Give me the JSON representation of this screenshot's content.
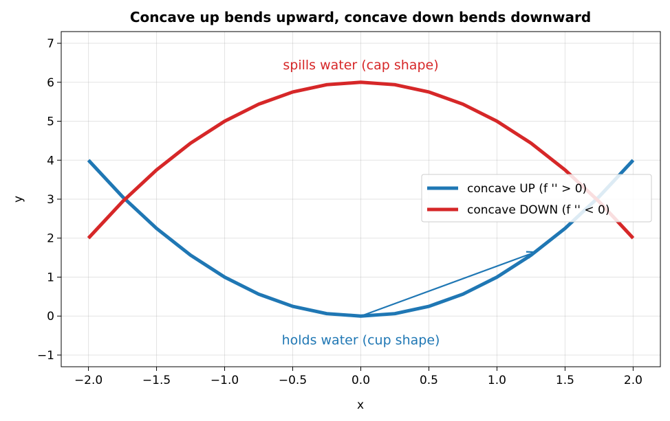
{
  "chart_data": {
    "type": "line",
    "title": "Concave up bends upward, concave down bends downward",
    "xlabel": "x",
    "ylabel": "y",
    "xlim": [
      -2.2,
      2.2
    ],
    "ylim": [
      -1.3,
      7.3
    ],
    "x_ticks": [
      -2.0,
      -1.5,
      -1.0,
      -0.5,
      0.0,
      0.5,
      1.0,
      1.5,
      2.0
    ],
    "x_tick_labels": [
      "−2.0",
      "−1.5",
      "−1.0",
      "−0.5",
      "0.0",
      "0.5",
      "1.0",
      "1.5",
      "2.0"
    ],
    "y_ticks": [
      -1,
      0,
      1,
      2,
      3,
      4,
      5,
      6,
      7
    ],
    "y_tick_labels": [
      "−1",
      "0",
      "1",
      "2",
      "3",
      "4",
      "5",
      "6",
      "7"
    ],
    "grid": true,
    "legend_position": "center-right",
    "series": [
      {
        "name": "concave UP  (f '' > 0)",
        "color": "#1f77b4",
        "x": [
          -2.0,
          -1.75,
          -1.5,
          -1.25,
          -1.0,
          -0.75,
          -0.5,
          -0.25,
          0.0,
          0.25,
          0.5,
          0.75,
          1.0,
          1.25,
          1.5,
          1.75,
          2.0
        ],
        "y": [
          4.0,
          3.0625,
          2.25,
          1.5625,
          1.0,
          0.5625,
          0.25,
          0.0625,
          0.0,
          0.0625,
          0.25,
          0.5625,
          1.0,
          1.5625,
          2.25,
          3.0625,
          4.0
        ]
      },
      {
        "name": "concave DOWN  (f '' < 0)",
        "color": "#d62728",
        "x": [
          -2.0,
          -1.75,
          -1.5,
          -1.25,
          -1.0,
          -0.75,
          -0.5,
          -0.25,
          0.0,
          0.25,
          0.5,
          0.75,
          1.0,
          1.25,
          1.5,
          1.75,
          2.0
        ],
        "y": [
          2.0,
          2.9375,
          3.75,
          4.4375,
          5.0,
          5.4375,
          5.75,
          5.9375,
          6.0,
          5.9375,
          5.75,
          5.4375,
          5.0,
          4.4375,
          3.75,
          2.9375,
          2.0
        ]
      }
    ],
    "annotations": [
      {
        "text": "spills water  (cap shape)",
        "x": 0.0,
        "y": 6.45,
        "color": "#d62728"
      },
      {
        "text": "holds water  (cup shape)",
        "x": 0.0,
        "y": -0.6,
        "color": "#1f77b4"
      }
    ],
    "arrow": {
      "from": [
        0.0,
        0.0
      ],
      "to": [
        1.28,
        1.64
      ],
      "color": "#1f77b4"
    }
  }
}
